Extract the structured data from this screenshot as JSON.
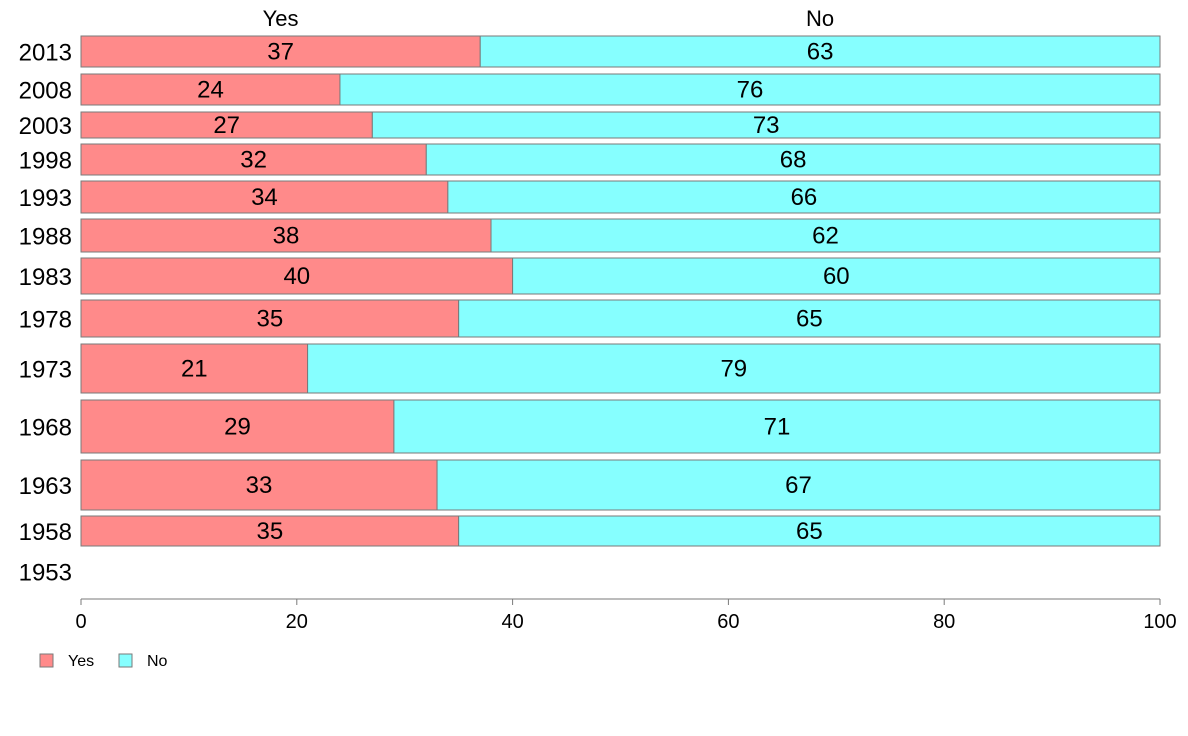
{
  "chart_data": {
    "type": "bar",
    "orientation": "horizontal",
    "stacked": true,
    "percent": true,
    "categories": [
      "2013",
      "2008",
      "2003",
      "1998",
      "1993",
      "1988",
      "1983",
      "1978",
      "1973",
      "1968",
      "1963",
      "1958",
      "1953"
    ],
    "series": [
      {
        "name": "Yes",
        "color": "#FF8A8A",
        "values": [
          37,
          24,
          27,
          32,
          34,
          38,
          40,
          35,
          21,
          29,
          33,
          35,
          null
        ]
      },
      {
        "name": "No",
        "color": "#86FFFF",
        "values": [
          63,
          76,
          73,
          68,
          66,
          62,
          60,
          65,
          79,
          71,
          67,
          65,
          null
        ]
      }
    ],
    "column_headers": [
      "Yes",
      "No"
    ],
    "xlim": [
      0,
      100
    ],
    "xticks": [
      0,
      20,
      40,
      60,
      80,
      100
    ],
    "title": "",
    "xlabel": "",
    "ylabel": "",
    "grid": false,
    "legend": {
      "placement": "bottom-left",
      "entries": [
        "Yes",
        "No"
      ]
    }
  }
}
